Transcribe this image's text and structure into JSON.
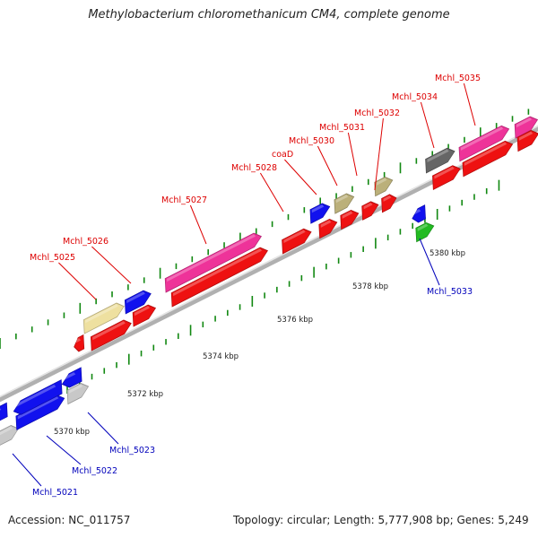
{
  "title": "Methylobacterium chloromethanicum CM4, complete genome",
  "footer": {
    "accession": "Accession: NC_011757",
    "stats": "Topology: circular; Length: 5,777,908 bp; Genes: 5,249"
  },
  "colors": {
    "red": "#ee1111",
    "magenta": "#ee3399",
    "blue": "#1111ee",
    "khaki": "#bbb07a",
    "paleyellow": "#eee0a0",
    "gray": "#c8c8c8",
    "darkgray": "#666666",
    "green": "#22bb22",
    "backbone": "#b0b0b0",
    "tick": "#118811",
    "label_red": "#dd0000",
    "label_blue": "#0000bb"
  },
  "scale_labels": [
    "5370 kbp",
    "5372 kbp",
    "5374 kbp",
    "5376 kbp",
    "5378 kbp",
    "5380 kbp"
  ],
  "gene_labels": [
    {
      "text": "Mchl_5021",
      "color": "blue"
    },
    {
      "text": "Mchl_5022",
      "color": "blue"
    },
    {
      "text": "Mchl_5023",
      "color": "blue"
    },
    {
      "text": "Mchl_5025",
      "color": "red"
    },
    {
      "text": "Mchl_5026",
      "color": "red"
    },
    {
      "text": "Mchl_5027",
      "color": "red"
    },
    {
      "text": "Mchl_5028",
      "color": "red"
    },
    {
      "text": "coaD",
      "color": "red"
    },
    {
      "text": "Mchl_5030",
      "color": "red"
    },
    {
      "text": "Mchl_5031",
      "color": "red"
    },
    {
      "text": "Mchl_5032",
      "color": "red"
    },
    {
      "text": "Mchl_5033",
      "color": "blue"
    },
    {
      "text": "Mchl_5034",
      "color": "red"
    },
    {
      "text": "Mchl_5035",
      "color": "red"
    }
  ]
}
